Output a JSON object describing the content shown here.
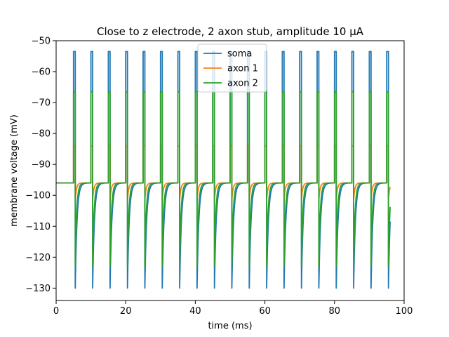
{
  "chart_data": {
    "type": "line",
    "title": "Close to z electrode, 2 axon stub, amplitude 10 µA",
    "xlabel": "time (ms)",
    "ylabel": "membrane voltage (mV)",
    "xlim": [
      0,
      100
    ],
    "ylim": [
      -134,
      -50
    ],
    "xticks": [
      0,
      20,
      40,
      60,
      80,
      100
    ],
    "yticks": [
      -130,
      -120,
      -110,
      -100,
      -90,
      -80,
      -70,
      -60,
      -50
    ],
    "grid": false,
    "legend_position": "top-center",
    "pulse_times": [
      5,
      10,
      15,
      20,
      25,
      30,
      35,
      40,
      45,
      50,
      55,
      60,
      65,
      70,
      75,
      80,
      85,
      90,
      95
    ],
    "series": [
      {
        "name": "soma",
        "color": "#1f77b4",
        "baseline": -96,
        "peak": -53.5,
        "trough": -130,
        "recovery_tau": 0.5
      },
      {
        "name": "axon 1",
        "color": "#ff7f0e",
        "baseline": -96,
        "peak": -84,
        "trough": -101.5,
        "recovery_tau": 0.35
      },
      {
        "name": "axon 2",
        "color": "#2ca02c",
        "baseline": -96,
        "peak": -66.5,
        "trough": -123,
        "recovery_tau": 0.4
      }
    ]
  }
}
